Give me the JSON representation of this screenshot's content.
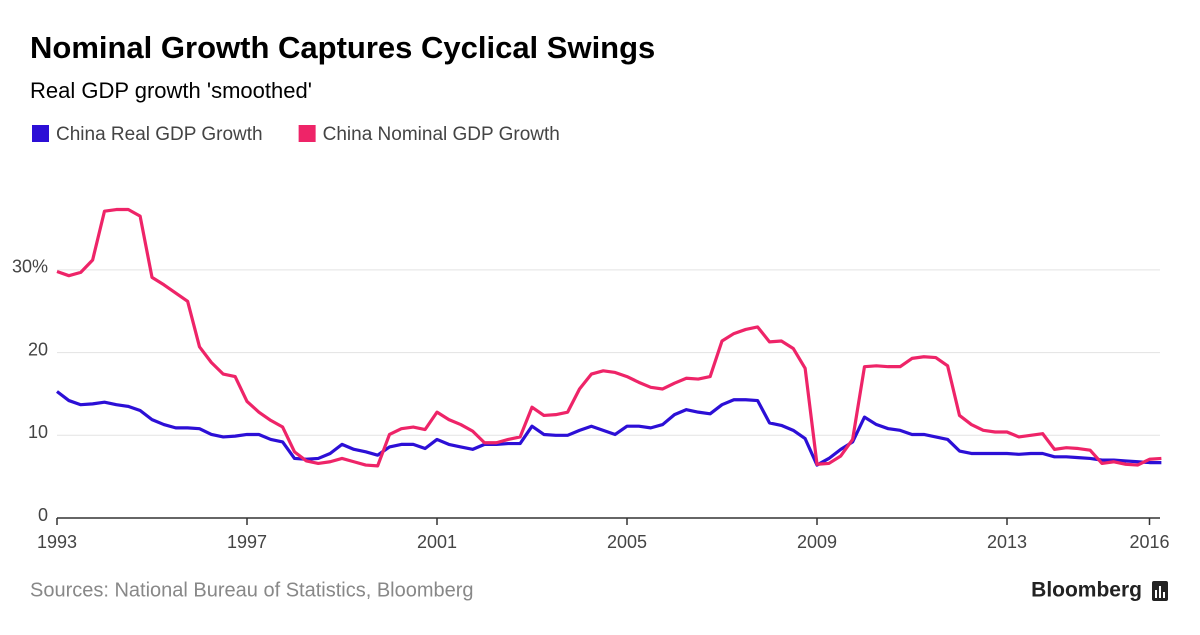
{
  "chart_data": {
    "type": "line",
    "title": "Nominal Growth Captures Cyclical Swings",
    "subtitle": "Real GDP growth 'smoothed'",
    "source": "Sources: National Bureau of Statistics, Bloomberg",
    "brand": "Bloomberg",
    "x": [
      1993,
      1993.25,
      1993.5,
      1993.75,
      1994,
      1994.25,
      1994.5,
      1994.75,
      1995,
      1995.25,
      1995.5,
      1995.75,
      1996,
      1996.25,
      1996.5,
      1996.75,
      1997,
      1997.25,
      1997.5,
      1997.75,
      1998,
      1998.25,
      1998.5,
      1998.75,
      1999,
      1999.25,
      1999.5,
      1999.75,
      2000,
      2000.25,
      2000.5,
      2000.75,
      2001,
      2001.25,
      2001.5,
      2001.75,
      2002,
      2002.25,
      2002.5,
      2002.75,
      2003,
      2003.25,
      2003.5,
      2003.75,
      2004,
      2004.25,
      2004.5,
      2004.75,
      2005,
      2005.25,
      2005.5,
      2005.75,
      2006,
      2006.25,
      2006.5,
      2006.75,
      2007,
      2007.25,
      2007.5,
      2007.75,
      2008,
      2008.25,
      2008.5,
      2008.75,
      2009,
      2009.25,
      2009.5,
      2009.75,
      2010,
      2010.25,
      2010.5,
      2010.75,
      2011,
      2011.25,
      2011.5,
      2011.75,
      2012,
      2012.25,
      2012.5,
      2012.75,
      2013,
      2013.25,
      2013.5,
      2013.75,
      2014,
      2014.25,
      2014.5,
      2014.75,
      2015,
      2015.25,
      2015.5,
      2015.75,
      2016,
      2016.25
    ],
    "series": [
      {
        "name": "China Real GDP Growth",
        "color": "#2c0fd6",
        "values": [
          15.3,
          14.2,
          13.7,
          13.8,
          14.0,
          13.7,
          13.5,
          13.0,
          11.9,
          11.3,
          10.9,
          10.9,
          10.8,
          10.1,
          9.8,
          9.9,
          10.1,
          10.1,
          9.5,
          9.2,
          7.2,
          7.1,
          7.2,
          7.8,
          8.9,
          8.3,
          8.0,
          7.6,
          8.6,
          8.9,
          8.9,
          8.4,
          9.5,
          8.9,
          8.6,
          8.3,
          8.9,
          8.9,
          9.0,
          9.0,
          11.1,
          10.1,
          10.0,
          10.0,
          10.6,
          11.1,
          10.6,
          10.1,
          11.1,
          11.1,
          10.9,
          11.3,
          12.5,
          13.1,
          12.8,
          12.6,
          13.7,
          14.3,
          14.3,
          14.2,
          11.5,
          11.2,
          10.6,
          9.6,
          6.4,
          7.2,
          8.3,
          9.2,
          12.2,
          11.3,
          10.8,
          10.6,
          10.1,
          10.1,
          9.8,
          9.5,
          8.1,
          7.8,
          7.8,
          7.8,
          7.8,
          7.7,
          7.8,
          7.8,
          7.4,
          7.4,
          7.3,
          7.2,
          7.0,
          7.0,
          6.9,
          6.8,
          6.7,
          6.7
        ]
      },
      {
        "name": "China Nominal GDP Growth",
        "color": "#ee2468",
        "values": [
          29.8,
          29.3,
          29.7,
          31.2,
          37.1,
          37.3,
          37.3,
          36.5,
          29.1,
          28.2,
          27.2,
          26.2,
          20.7,
          18.8,
          17.4,
          17.1,
          14.1,
          12.8,
          11.8,
          11.0,
          8.0,
          6.9,
          6.6,
          6.8,
          7.2,
          6.8,
          6.4,
          6.3,
          10.1,
          10.8,
          11.0,
          10.7,
          12.8,
          11.9,
          11.3,
          10.5,
          9.1,
          9.1,
          9.5,
          9.8,
          13.4,
          12.4,
          12.5,
          12.8,
          15.6,
          17.4,
          17.8,
          17.6,
          17.1,
          16.4,
          15.8,
          15.6,
          16.3,
          16.9,
          16.8,
          17.1,
          21.4,
          22.3,
          22.8,
          23.1,
          21.3,
          21.4,
          20.5,
          18.1,
          6.5,
          6.6,
          7.5,
          9.5,
          18.3,
          18.4,
          18.3,
          18.3,
          19.3,
          19.5,
          19.4,
          18.4,
          12.4,
          11.3,
          10.6,
          10.4,
          10.4,
          9.8,
          10.0,
          10.2,
          8.3,
          8.5,
          8.4,
          8.2,
          6.6,
          6.8,
          6.5,
          6.4,
          7.1,
          7.2
        ]
      }
    ],
    "xlim": [
      1993,
      2016.25
    ],
    "xticks": [
      1993,
      1997,
      2001,
      2005,
      2009,
      2013,
      2016
    ],
    "ylim": [
      0,
      40
    ],
    "yticks": [
      0,
      10,
      20,
      {
        "value": 30,
        "label": "30%"
      }
    ],
    "grid": true
  }
}
